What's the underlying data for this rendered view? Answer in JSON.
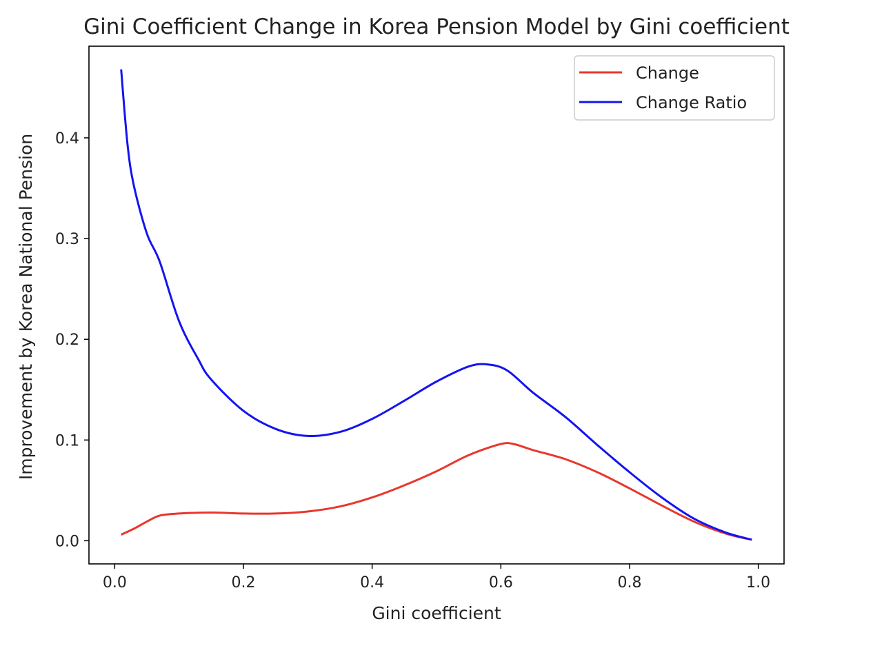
{
  "chart_data": {
    "type": "line",
    "title": "Gini Coefficient Change in Korea Pension Model by Gini coefficient",
    "xlabel": "Gini coefficient",
    "ylabel": "Improvement by Korea National Pension",
    "xlim": [
      -0.04,
      1.04
    ],
    "ylim": [
      -0.023,
      0.491
    ],
    "xticks": [
      "0.0",
      "0.2",
      "0.4",
      "0.6",
      "0.8",
      "1.0"
    ],
    "yticks": [
      "0.0",
      "0.1",
      "0.2",
      "0.3",
      "0.4"
    ],
    "grid": false,
    "legend_position": "top-right",
    "series": [
      {
        "name": "Change",
        "color": "#e8372c",
        "points": [
          [
            0.01,
            0.006
          ],
          [
            0.03,
            0.012
          ],
          [
            0.05,
            0.019
          ],
          [
            0.07,
            0.025
          ],
          [
            0.1,
            0.027
          ],
          [
            0.15,
            0.028
          ],
          [
            0.2,
            0.027
          ],
          [
            0.25,
            0.027
          ],
          [
            0.3,
            0.029
          ],
          [
            0.35,
            0.034
          ],
          [
            0.4,
            0.043
          ],
          [
            0.45,
            0.055
          ],
          [
            0.5,
            0.069
          ],
          [
            0.55,
            0.085
          ],
          [
            0.6,
            0.096
          ],
          [
            0.62,
            0.096
          ],
          [
            0.65,
            0.09
          ],
          [
            0.7,
            0.081
          ],
          [
            0.75,
            0.068
          ],
          [
            0.8,
            0.052
          ],
          [
            0.85,
            0.035
          ],
          [
            0.9,
            0.019
          ],
          [
            0.95,
            0.007
          ],
          [
            0.99,
            0.001
          ]
        ]
      },
      {
        "name": "Change Ratio",
        "color": "#1414f0",
        "points": [
          [
            0.01,
            0.468
          ],
          [
            0.02,
            0.393
          ],
          [
            0.03,
            0.352
          ],
          [
            0.05,
            0.305
          ],
          [
            0.07,
            0.277
          ],
          [
            0.1,
            0.218
          ],
          [
            0.13,
            0.18
          ],
          [
            0.15,
            0.16
          ],
          [
            0.2,
            0.129
          ],
          [
            0.25,
            0.111
          ],
          [
            0.3,
            0.104
          ],
          [
            0.35,
            0.108
          ],
          [
            0.4,
            0.121
          ],
          [
            0.45,
            0.139
          ],
          [
            0.5,
            0.158
          ],
          [
            0.55,
            0.173
          ],
          [
            0.58,
            0.175
          ],
          [
            0.61,
            0.169
          ],
          [
            0.65,
            0.147
          ],
          [
            0.7,
            0.123
          ],
          [
            0.75,
            0.095
          ],
          [
            0.8,
            0.068
          ],
          [
            0.85,
            0.043
          ],
          [
            0.9,
            0.022
          ],
          [
            0.95,
            0.008
          ],
          [
            0.99,
            0.001
          ]
        ]
      }
    ]
  }
}
